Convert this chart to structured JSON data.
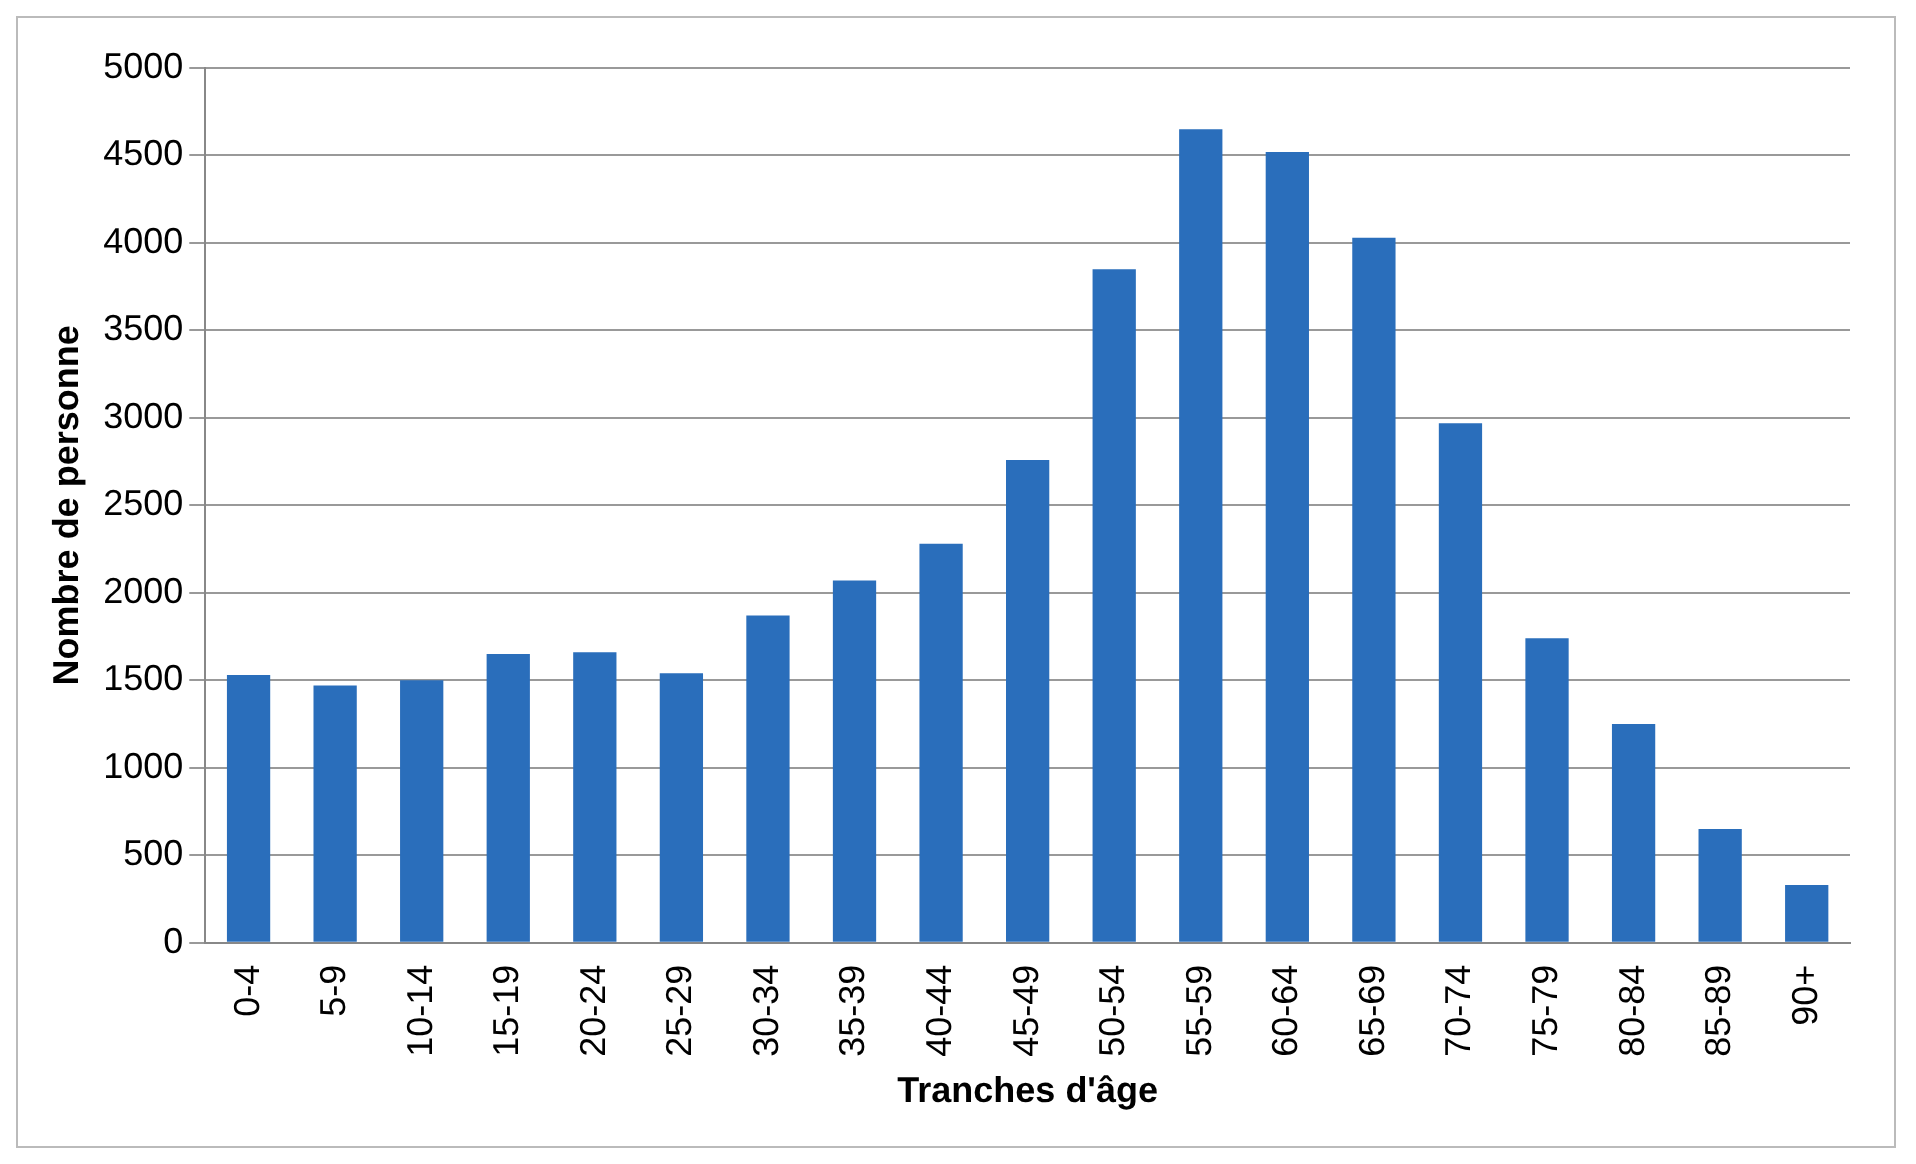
{
  "chart_data": {
    "type": "bar",
    "xlabel": "Tranches d'âge",
    "ylabel": "Nombre de personne",
    "categories": [
      "0-4",
      "5-9",
      "10-14",
      "15-19",
      "20-24",
      "25-29",
      "30-34",
      "35-39",
      "40-44",
      "45-49",
      "50-54",
      "55-59",
      "60-64",
      "65-69",
      "70-74",
      "75-79",
      "80-84",
      "85-89",
      "90+"
    ],
    "values": [
      1530,
      1470,
      1500,
      1650,
      1660,
      1540,
      1870,
      2070,
      2280,
      2760,
      3850,
      4650,
      4520,
      4030,
      2970,
      1740,
      1250,
      650,
      330
    ],
    "color": "#2a6ebb",
    "ylim": [
      0,
      5000
    ],
    "yticks": [
      0,
      500,
      1000,
      1500,
      2000,
      2500,
      3000,
      3500,
      4000,
      4500,
      5000
    ],
    "grid": "y",
    "legend": false
  }
}
